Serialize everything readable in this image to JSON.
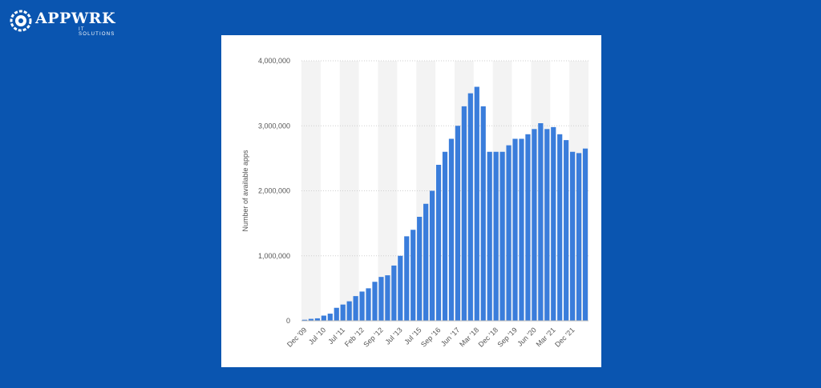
{
  "brand": {
    "name": "APPWRK",
    "tagline": "IT SOLUTIONS",
    "colors": {
      "background": "#0a55b0",
      "card": "#ffffff"
    }
  },
  "chart_data": {
    "type": "bar",
    "title": "",
    "xlabel": "",
    "ylabel": "Number of available apps",
    "ylim": [
      0,
      4000000
    ],
    "yticks": [
      "0",
      "1,000,000",
      "2,000,000",
      "3,000,000",
      "4,000,000"
    ],
    "ytick_values": [
      0,
      1000000,
      2000000,
      3000000,
      4000000
    ],
    "xtick_labels": [
      "Dec '09",
      "Jul '10",
      "Jul '11",
      "Feb '12",
      "Sep '12",
      "Jul '13",
      "Jul '15",
      "Sep '16",
      "Jun '17",
      "Mar '18",
      "Dec '18",
      "Sep '19",
      "Jun '20",
      "Mar '21",
      "Dec '21"
    ],
    "xtick_positions": [
      0,
      3,
      6,
      9,
      12,
      15,
      18,
      21,
      24,
      27,
      30,
      33,
      36,
      39,
      42
    ],
    "grid": true,
    "bar_color": "#3a7ddb",
    "stripe_color": "#f3f3f3",
    "values": [
      16000,
      30000,
      38000,
      80000,
      110000,
      200000,
      250000,
      300000,
      380000,
      450000,
      500000,
      600000,
      675000,
      700000,
      850000,
      1000000,
      1300000,
      1400000,
      1600000,
      1800000,
      2000000,
      2400000,
      2600000,
      2800000,
      3000000,
      3300000,
      3500000,
      3600000,
      3300000,
      2600000,
      2600000,
      2600000,
      2700000,
      2800000,
      2800000,
      2870000,
      2950000,
      3040000,
      2950000,
      2980000,
      2870000,
      2780000,
      2600000,
      2580000,
      2650000
    ]
  }
}
